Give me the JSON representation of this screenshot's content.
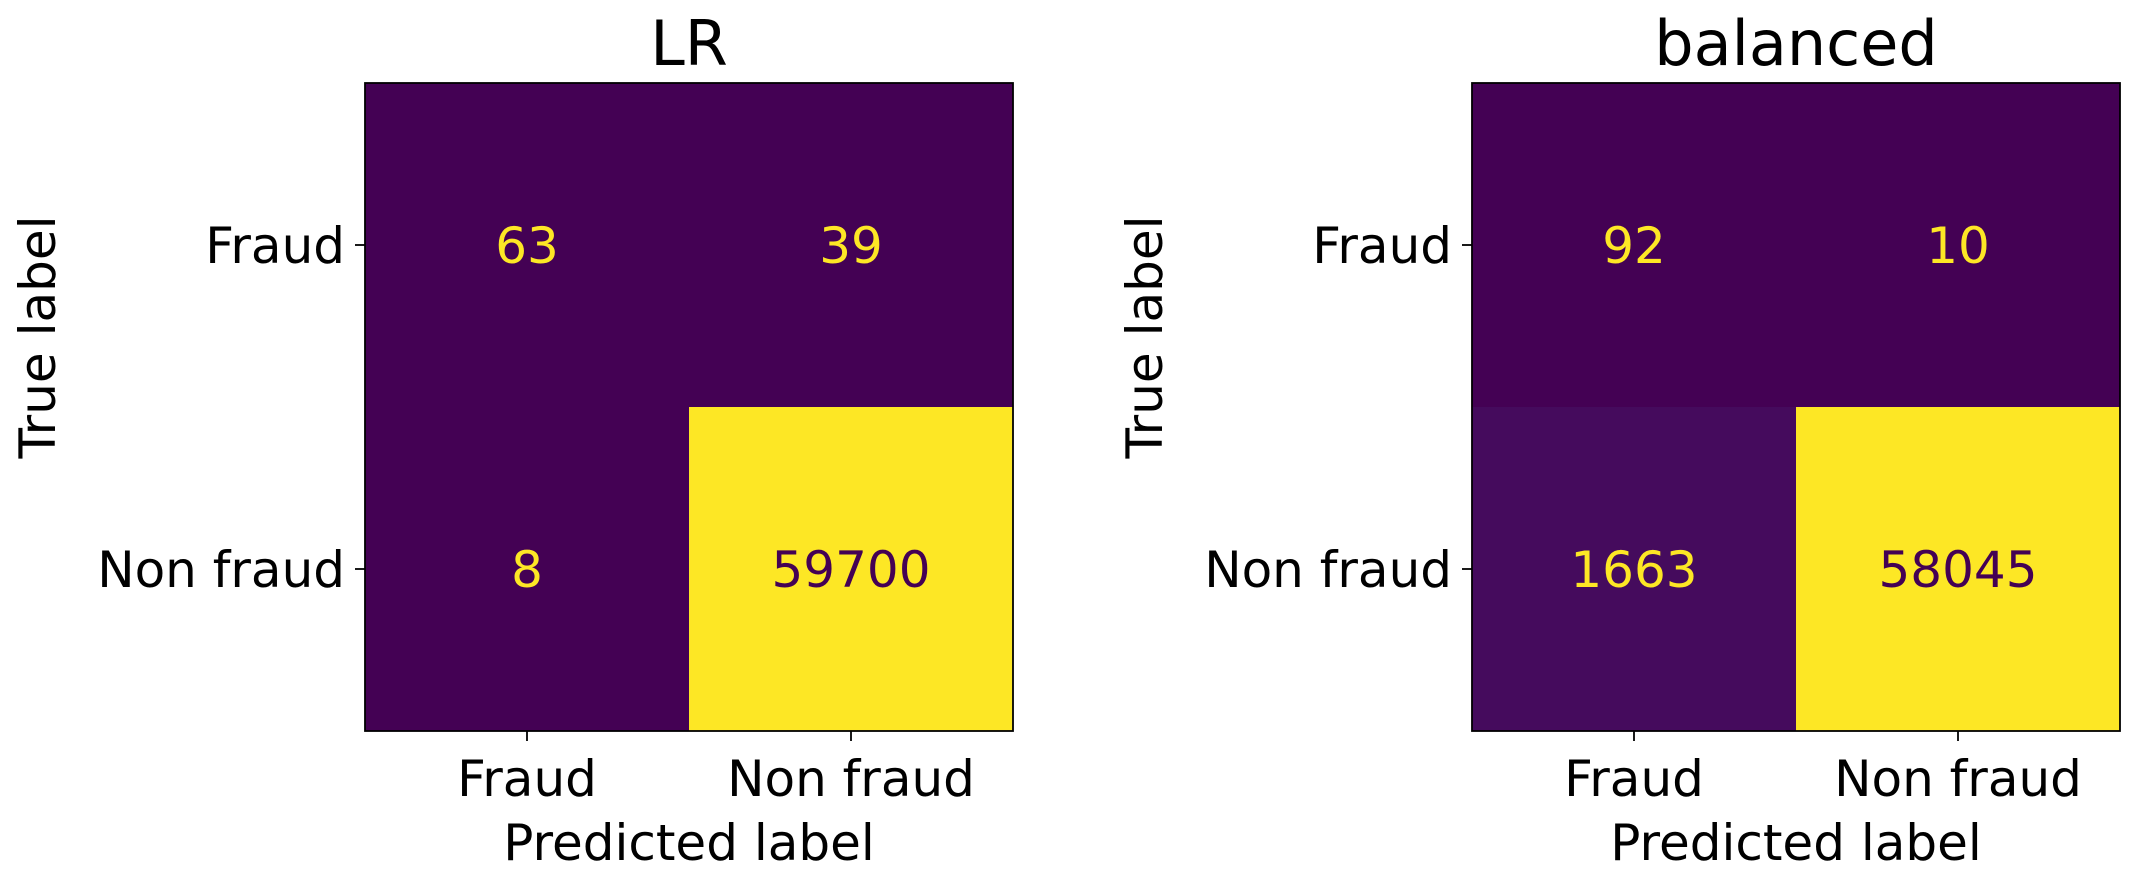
{
  "chart_data": [
    {
      "type": "heatmap",
      "title": "LR",
      "xlabel": "Predicted label",
      "ylabel": "True label",
      "x_tick_labels": [
        "Fraud",
        "Non fraud"
      ],
      "y_tick_labels": [
        "Fraud",
        "Non fraud"
      ],
      "matrix": [
        [
          63,
          39
        ],
        [
          8,
          59700
        ]
      ],
      "colormap": "viridis",
      "colorbar": false
    },
    {
      "type": "heatmap",
      "title": "balanced",
      "xlabel": "Predicted label",
      "ylabel": "True label",
      "x_tick_labels": [
        "Fraud",
        "Non fraud"
      ],
      "y_tick_labels": [
        "Fraud",
        "Non fraud"
      ],
      "matrix": [
        [
          92,
          10
        ],
        [
          1663,
          58045
        ]
      ],
      "colormap": "viridis",
      "colorbar": false
    }
  ],
  "colors": {
    "viridis_low": "#440154",
    "viridis_high": "#fde725",
    "frame": "#000000",
    "text": "#000000"
  }
}
